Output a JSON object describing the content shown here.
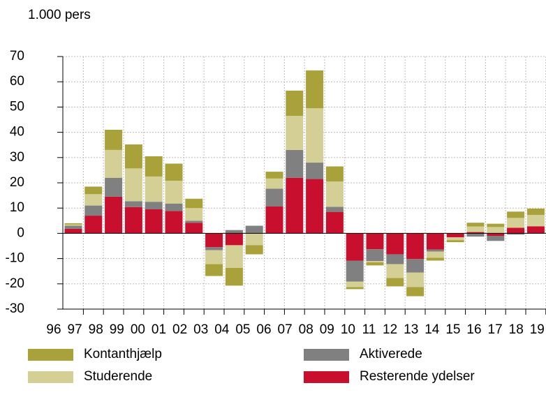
{
  "chart_data": {
    "type": "stacked_bar",
    "y_axis_label": "1.000 pers",
    "categories": [
      "96",
      "97",
      "98",
      "99",
      "00",
      "01",
      "02",
      "03",
      "04",
      "05",
      "06",
      "07",
      "08",
      "09",
      "10",
      "11",
      "12",
      "13",
      "14",
      "15",
      "16",
      "17",
      "18",
      "19"
    ],
    "series": [
      {
        "name": "Kontanthjælp",
        "color": "#a9a23a",
        "values": [
          0.5,
          3,
          8,
          9.5,
          8,
          6.8,
          3.7,
          -4.7,
          -7,
          -3.6,
          2.7,
          10,
          15,
          6,
          -0.8,
          -1.2,
          -3.3,
          -3.6,
          -1.1,
          -0.8,
          1.5,
          1.3,
          2.5,
          2.5
        ]
      },
      {
        "name": "Studerende",
        "color": "#d4d095",
        "values": [
          0.5,
          4.5,
          11,
          13,
          10,
          9,
          5,
          -5.5,
          -9,
          -4.7,
          4,
          13.5,
          21.5,
          10,
          -2.2,
          -0.5,
          -5.5,
          -5.8,
          -2.5,
          -1.1,
          2.2,
          2.5,
          3.9,
          4.5
        ]
      },
      {
        "name": "Aktiverede",
        "color": "#808080",
        "values": [
          1.2,
          4,
          7.5,
          2.3,
          3,
          3,
          0.8,
          -1.2,
          1.3,
          3,
          7,
          11,
          6.5,
          2,
          -8.3,
          -4.7,
          -3.9,
          -5.3,
          -0.8,
          0,
          -1.3,
          -2,
          -0.5,
          0
        ]
      },
      {
        "name": "Resterende ydelser",
        "color": "#c8102e",
        "values": [
          1.8,
          7,
          14.5,
          10.4,
          9.5,
          8.8,
          4.2,
          -5.5,
          -4.7,
          0,
          10.7,
          22,
          21.5,
          8.5,
          -10.8,
          -6.3,
          -8.3,
          -10.2,
          -6.4,
          -1.6,
          0.5,
          -1,
          2.2,
          2.8
        ]
      }
    ],
    "ylim": [
      -30,
      70
    ],
    "yticks": [
      -30,
      -20,
      -10,
      0,
      10,
      20,
      30,
      40,
      50,
      60,
      70
    ],
    "grid": true
  }
}
